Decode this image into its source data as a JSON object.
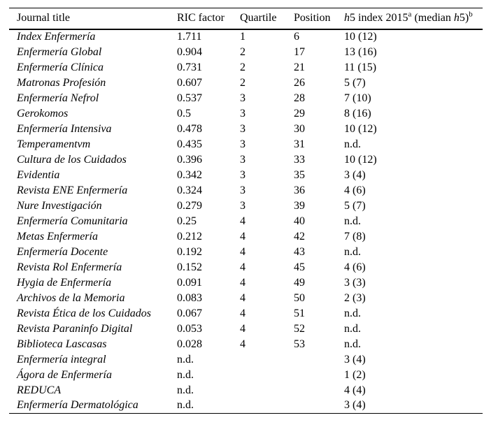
{
  "header": {
    "journal_title": "Journal title",
    "ric_factor": "RIC factor",
    "quartile": "Quartile",
    "position": "Position",
    "h5_parts": {
      "h1": "h",
      "t1": "5 index 2015",
      "sup_a": "a",
      "t2": " (median ",
      "h2": "h",
      "t3": "5)",
      "sup_b": "b"
    }
  },
  "rows": [
    {
      "title": "Index Enfermería",
      "ric": "1.711",
      "quartile": "1",
      "position": "6",
      "h5": "10 (12)"
    },
    {
      "title": "Enfermería Global",
      "ric": "0.904",
      "quartile": "2",
      "position": "17",
      "h5": "13 (16)"
    },
    {
      "title": "Enfermería Clínica",
      "ric": "0.731",
      "quartile": "2",
      "position": "21",
      "h5": "11 (15)"
    },
    {
      "title": "Matronas Profesión",
      "ric": "0.607",
      "quartile": "2",
      "position": "26",
      "h5": "5 (7)"
    },
    {
      "title": "Enfermería Nefrol",
      "ric": "0.537",
      "quartile": "3",
      "position": "28",
      "h5": "7 (10)"
    },
    {
      "title": "Gerokomos",
      "ric": "0.5",
      "quartile": "3",
      "position": "29",
      "h5": "8 (16)"
    },
    {
      "title": "Enfermería Intensiva",
      "ric": "0.478",
      "quartile": "3",
      "position": "30",
      "h5": "10 (12)"
    },
    {
      "title": "Temperamentvm",
      "ric": "0.435",
      "quartile": "3",
      "position": "31",
      "h5": "n.d."
    },
    {
      "title": "Cultura de los Cuidados",
      "ric": "0.396",
      "quartile": "3",
      "position": "33",
      "h5": "10 (12)"
    },
    {
      "title": "Evidentia",
      "ric": "0.342",
      "quartile": "3",
      "position": "35",
      "h5": "3 (4)"
    },
    {
      "title": "Revista ENE Enfermería",
      "ric": "0.324",
      "quartile": "3",
      "position": "36",
      "h5": "4 (6)"
    },
    {
      "title": "Nure Investigación",
      "ric": "0.279",
      "quartile": "3",
      "position": "39",
      "h5": "5 (7)"
    },
    {
      "title": "Enfermería Comunitaria",
      "ric": "0.25",
      "quartile": "4",
      "position": "40",
      "h5": "n.d."
    },
    {
      "title": "Metas Enfermería",
      "ric": "0.212",
      "quartile": "4",
      "position": "42",
      "h5": "7 (8)"
    },
    {
      "title": "Enfermería Docente",
      "ric": "0.192",
      "quartile": "4",
      "position": "43",
      "h5": "n.d."
    },
    {
      "title": "Revista Rol Enfermería",
      "ric": "0.152",
      "quartile": "4",
      "position": "45",
      "h5": "4 (6)"
    },
    {
      "title": "Hygia de Enfermería",
      "ric": "0.091",
      "quartile": "4",
      "position": "49",
      "h5": "3 (3)"
    },
    {
      "title": "Archivos de la Memoria",
      "ric": "0.083",
      "quartile": "4",
      "position": "50",
      "h5": "2 (3)"
    },
    {
      "title": "Revista Ética de los Cuidados",
      "ric": "0.067",
      "quartile": "4",
      "position": "51",
      "h5": "n.d."
    },
    {
      "title": "Revista Paraninfo Digital",
      "ric": "0.053",
      "quartile": "4",
      "position": "52",
      "h5": "n.d."
    },
    {
      "title": "Biblioteca Lascasas",
      "ric": "0.028",
      "quartile": "4",
      "position": "53",
      "h5": "n.d."
    },
    {
      "title": "Enfermería integral",
      "ric": "n.d.",
      "quartile": "",
      "position": "",
      "h5": "3 (4)"
    },
    {
      "title": "Ágora de Enfermería",
      "ric": "n.d.",
      "quartile": "",
      "position": "",
      "h5": "1 (2)"
    },
    {
      "title": "REDUCA",
      "ric": "n.d.",
      "quartile": "",
      "position": "",
      "h5": "4 (4)"
    },
    {
      "title": "Enfermería Dermatológica",
      "ric": "n.d.",
      "quartile": "",
      "position": "",
      "h5": "3 (4)"
    }
  ]
}
